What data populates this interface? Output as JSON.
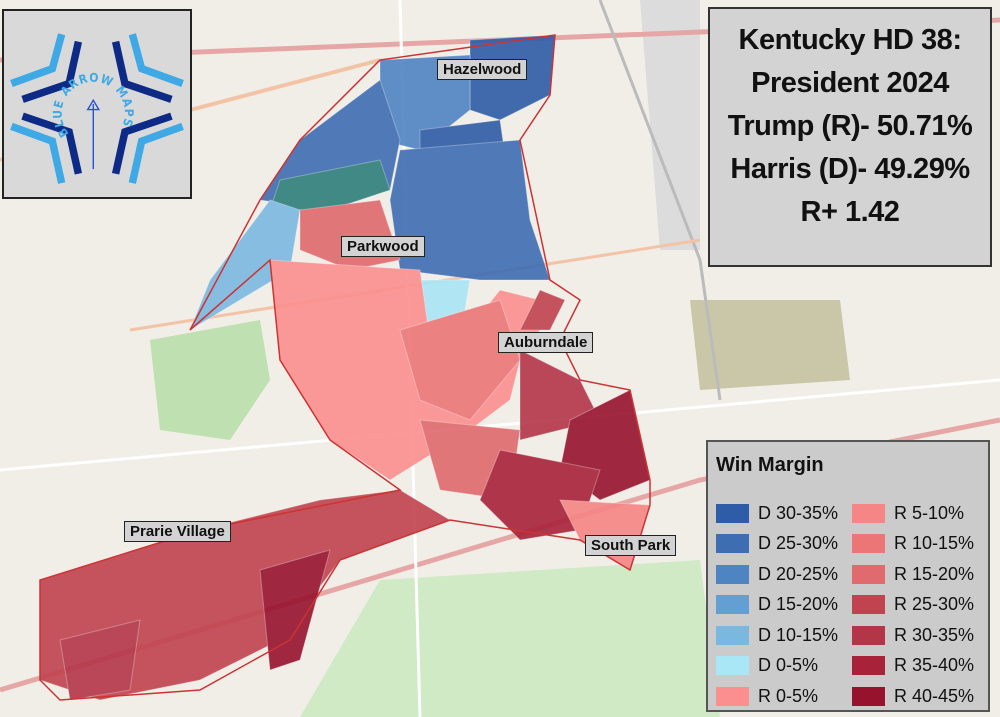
{
  "title": {
    "line1": "Kentucky HD 38:",
    "line2": "President 2024",
    "line3": "Trump (R)- 50.71%",
    "line4": "Harris (D)- 49.29%",
    "line5": "R+ 1.42"
  },
  "logo": {
    "text": "BLUE ARROW MAPS",
    "colors": {
      "light": "#3fa9e6",
      "dark": "#0c2a86"
    }
  },
  "places": [
    "Hazelwood",
    "Parkwood",
    "Auburndale",
    "South Park",
    "Prarie Village"
  ],
  "legend": {
    "title": "Win Margin",
    "items": [
      {
        "label": "D 30-35%",
        "color": "#2f5ca6"
      },
      {
        "label": "D 25-30%",
        "color": "#3e6db2"
      },
      {
        "label": "D 20-25%",
        "color": "#4f84c2"
      },
      {
        "label": "D 15-20%",
        "color": "#639fd3"
      },
      {
        "label": "D 10-15%",
        "color": "#7bb8e0"
      },
      {
        "label": "D 0-5%",
        "color": "#a9e6f6"
      },
      {
        "label": "R 0-5%",
        "color": "#fb8f8f"
      },
      {
        "label": "R 5-10%",
        "color": "#f68585"
      },
      {
        "label": "R 10-15%",
        "color": "#ec7676"
      },
      {
        "label": "R 15-20%",
        "color": "#e06a6e"
      },
      {
        "label": "R 25-30%",
        "color": "#c1434f"
      },
      {
        "label": "R 30-35%",
        "color": "#b33648"
      },
      {
        "label": "R 35-40%",
        "color": "#a8233a"
      },
      {
        "label": "R 40-45%",
        "color": "#97122d"
      }
    ]
  }
}
